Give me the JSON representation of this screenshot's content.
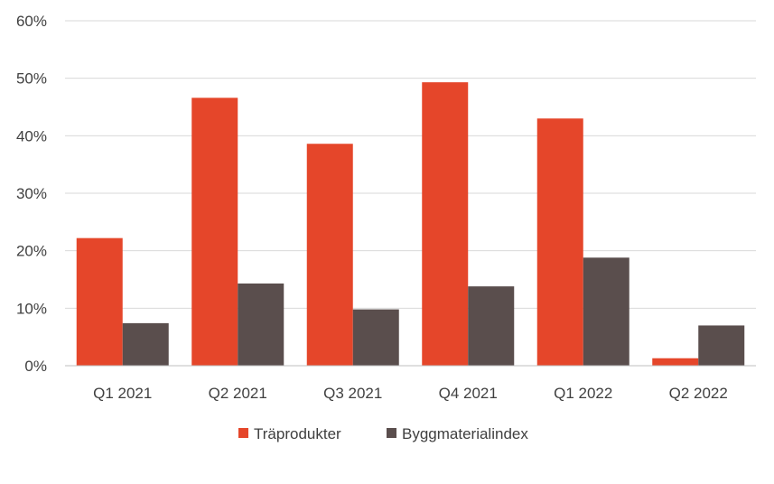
{
  "chart_data": {
    "type": "bar",
    "title": "",
    "xlabel": "",
    "ylabel": "",
    "categories": [
      "Q1 2021",
      "Q2 2021",
      "Q3 2021",
      "Q4 2021",
      "Q1 2022",
      "Q2 2022"
    ],
    "series": [
      {
        "name": "Träprodukter",
        "color": "#e5462a",
        "values": [
          22.2,
          46.6,
          38.6,
          49.3,
          43.0,
          1.3
        ]
      },
      {
        "name": "Byggmaterialindex",
        "color": "#5a4e4d",
        "values": [
          7.4,
          14.3,
          9.8,
          13.8,
          18.8,
          7.0
        ]
      }
    ],
    "ylim": [
      0,
      60
    ],
    "yticks": [
      0,
      10,
      20,
      30,
      40,
      50,
      60
    ],
    "ytick_labels": [
      "0%",
      "10%",
      "20%",
      "30%",
      "40%",
      "50%",
      "60%"
    ],
    "grid": true,
    "legend_position": "bottom"
  }
}
